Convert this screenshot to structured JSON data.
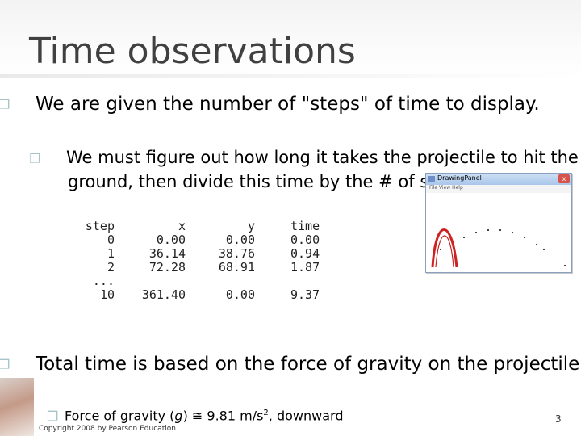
{
  "slide": {
    "title": "Time observations",
    "bullet1": "We are given the number of \"steps\" of time to display.",
    "bullet2": "We must figure out how long it takes the projectile to hit the ground, then divide this time by the # of steps requested.",
    "bullet3": "Total time is based on the force of gravity on the projectile.",
    "bullet4_pre": "Force of gravity (",
    "bullet4_g": "g",
    "bullet4_mid": ") ≅ 9.81 m/s",
    "bullet4_sup": "2",
    "bullet4_post": ", downward",
    "copyright": "Copyright 2008 by Pearson Education",
    "page_number": "3"
  },
  "table": {
    "headers": [
      "step",
      "x",
      "y",
      "time"
    ],
    "rows": [
      [
        "0",
        "0.00",
        "0.00",
        "0.00"
      ],
      [
        "1",
        "36.14",
        "38.76",
        "0.94"
      ],
      [
        "2",
        "72.28",
        "68.91",
        "1.87"
      ],
      [
        "...",
        "",
        "",
        ""
      ],
      [
        "10",
        "361.40",
        "0.00",
        "9.37"
      ]
    ]
  },
  "drawing_panel": {
    "window_title": "DrawingPanel",
    "menu": "File  View  Help",
    "close_glyph": "x",
    "colors": {
      "curve": "#cc2222",
      "dots": "#333333"
    }
  }
}
